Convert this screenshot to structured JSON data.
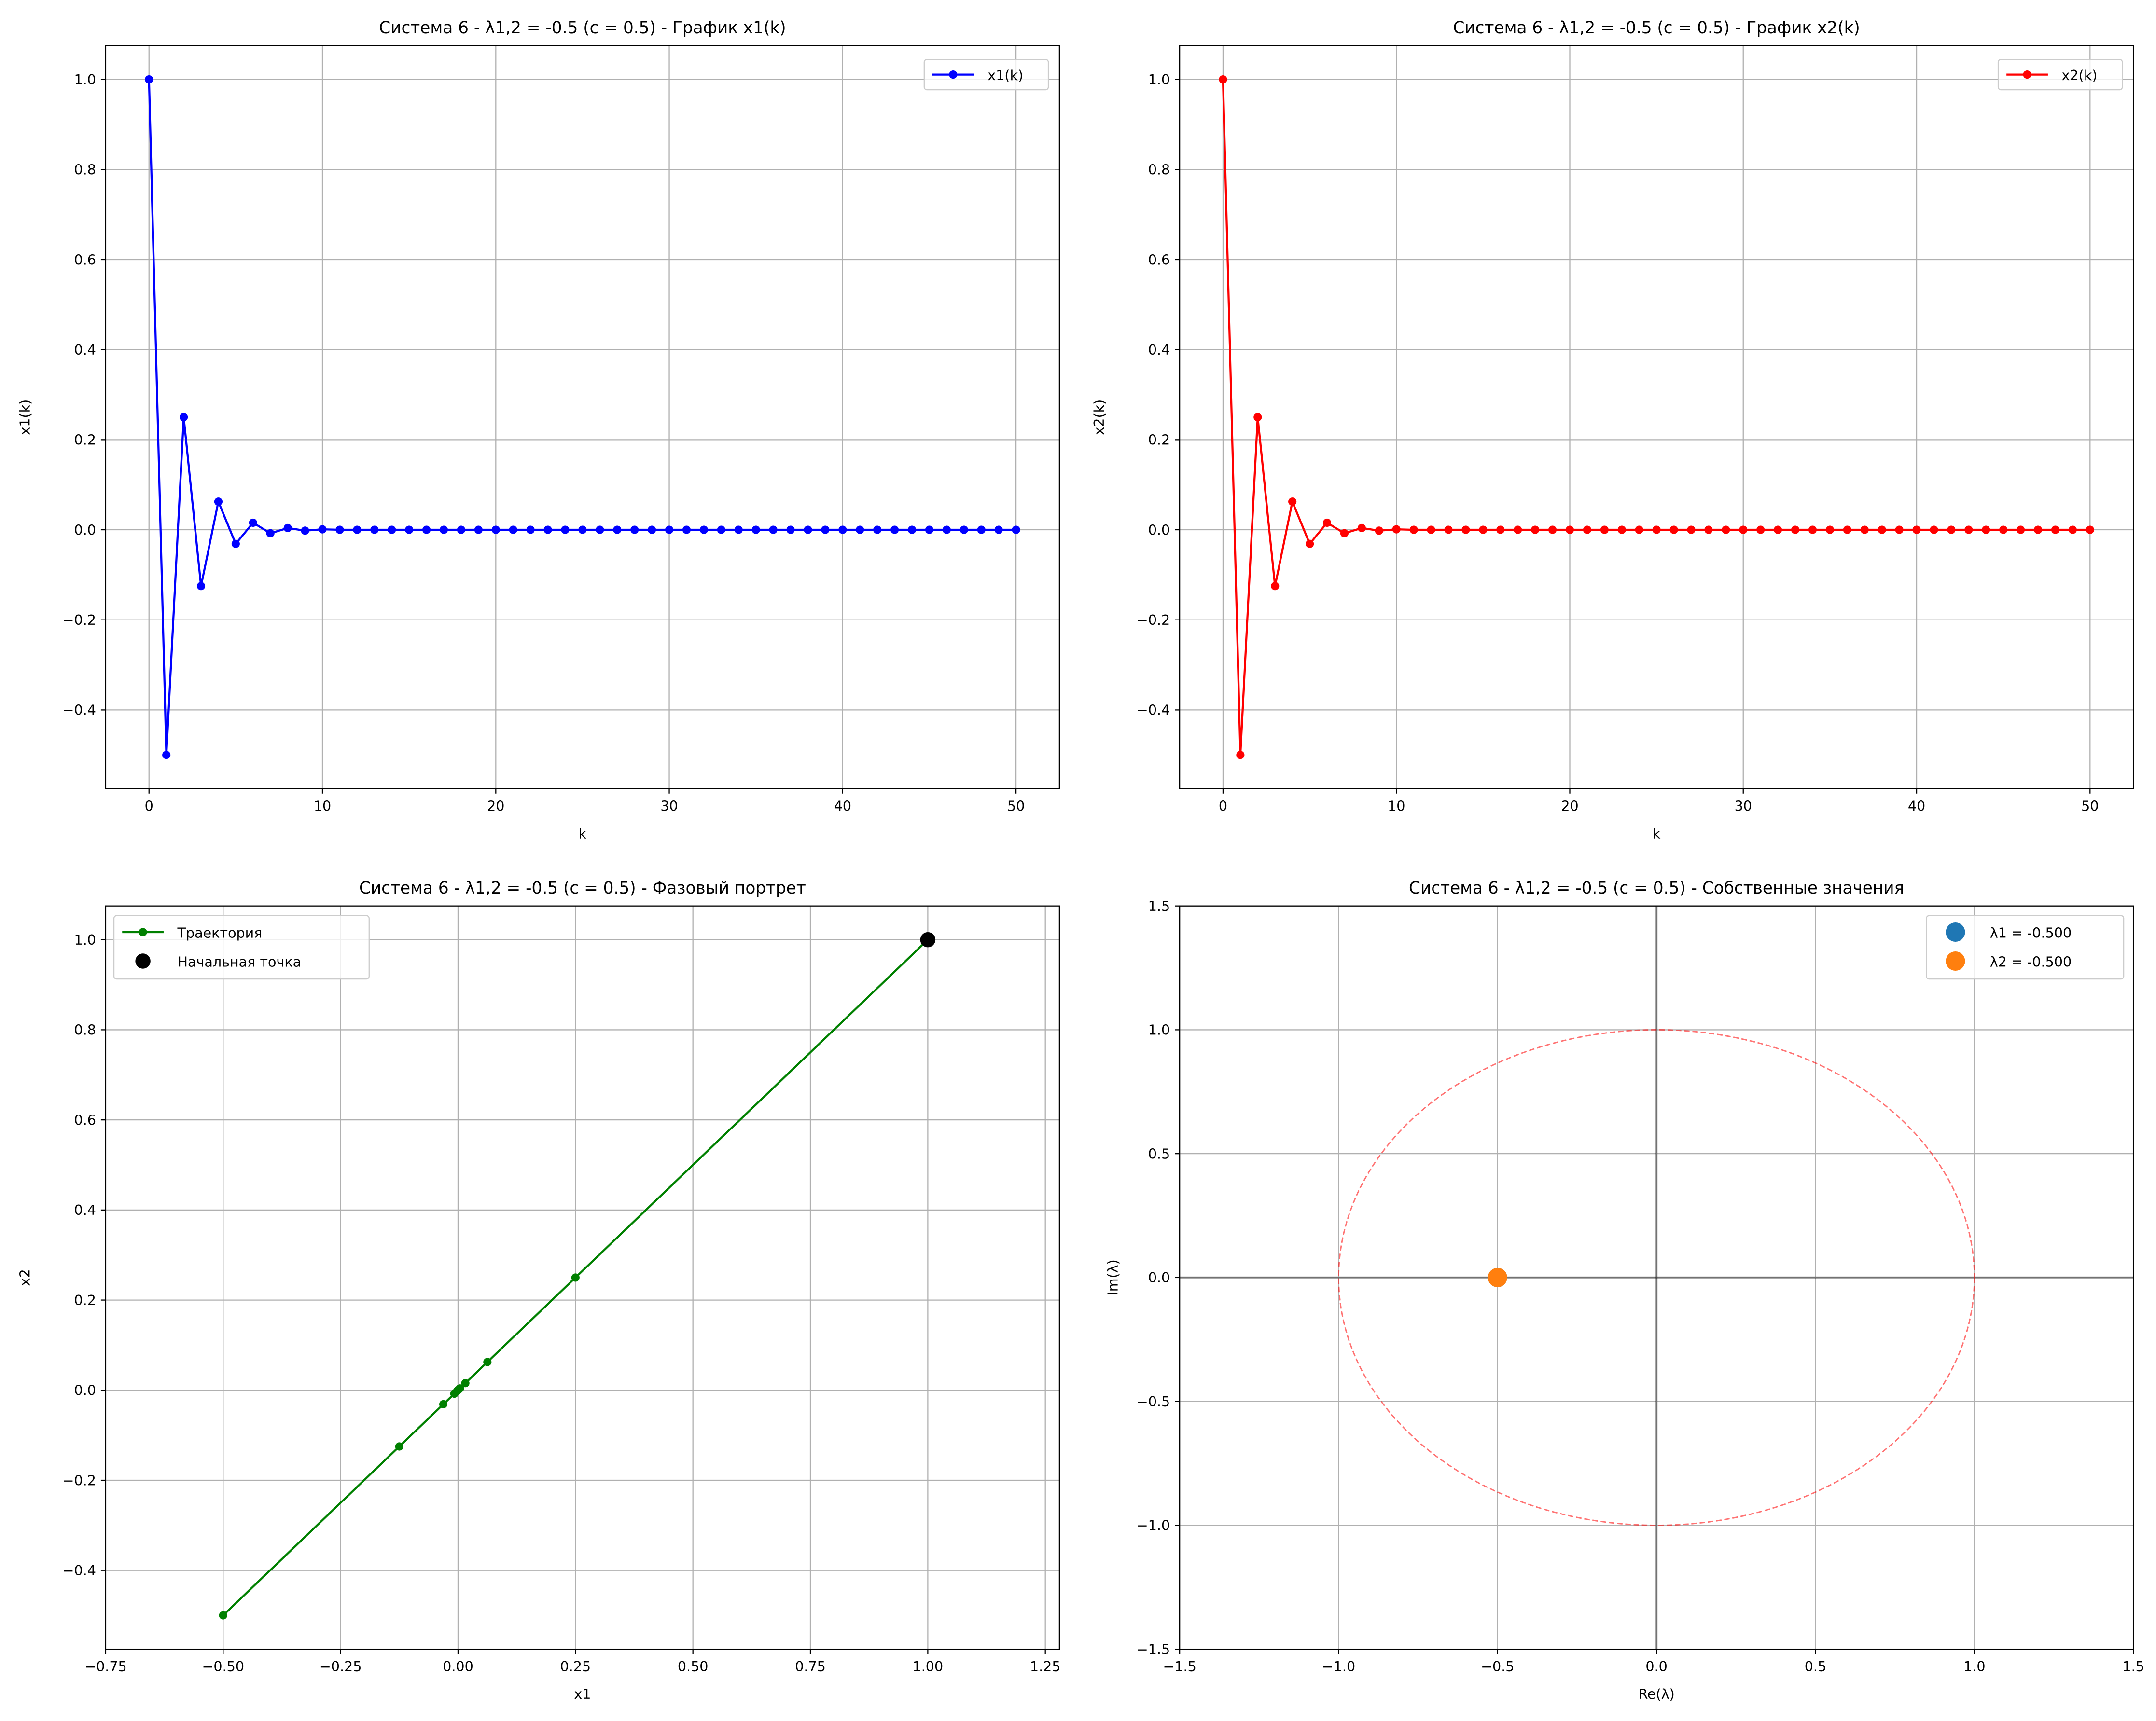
{
  "chart_data": [
    {
      "type": "line",
      "title": "Система 6 - λ1,2 = -0.5 (c = 0.5) - График x1(k)",
      "xlabel": "k",
      "ylabel": "x1(k)",
      "xlim": [
        -2.5,
        52.5
      ],
      "ylim": [
        -0.575,
        1.075
      ],
      "xticks": [
        "0",
        "10",
        "20",
        "30",
        "40",
        "50"
      ],
      "xtick_values": [
        0,
        10,
        20,
        30,
        40,
        50
      ],
      "yticks": [
        "−0.4",
        "−0.2",
        "0.0",
        "0.2",
        "0.4",
        "0.6",
        "0.8",
        "1.0"
      ],
      "ytick_values": [
        -0.4,
        -0.2,
        0,
        0.2,
        0.4,
        0.6,
        0.8,
        1.0
      ],
      "grid": true,
      "legend": "top-right",
      "series": [
        {
          "name": "x1(k)",
          "color": "#0000ff",
          "marker": "circle",
          "x": [
            0,
            1,
            2,
            3,
            4,
            5,
            6,
            7,
            8,
            9,
            10,
            11,
            12,
            13,
            14,
            15,
            16,
            17,
            18,
            19,
            20,
            21,
            22,
            23,
            24,
            25,
            26,
            27,
            28,
            29,
            30,
            31,
            32,
            33,
            34,
            35,
            36,
            37,
            38,
            39,
            40,
            41,
            42,
            43,
            44,
            45,
            46,
            47,
            48,
            49,
            50
          ],
          "y": [
            1,
            -0.5,
            0.25,
            -0.125,
            0.0625,
            -0.03125,
            0.015625,
            -0.0078125,
            0.00390625,
            -0.001953125,
            0.0009765625,
            0,
            0,
            0,
            0,
            0,
            0,
            0,
            0,
            0,
            0,
            0,
            0,
            0,
            0,
            0,
            0,
            0,
            0,
            0,
            0,
            0,
            0,
            0,
            0,
            0,
            0,
            0,
            0,
            0,
            0,
            0,
            0,
            0,
            0,
            0,
            0,
            0,
            0,
            0,
            0
          ]
        }
      ]
    },
    {
      "type": "line",
      "title": "Система 6 - λ1,2 = -0.5 (c = 0.5) - График x2(k)",
      "xlabel": "k",
      "ylabel": "x2(k)",
      "xlim": [
        -2.5,
        52.5
      ],
      "ylim": [
        -0.575,
        1.075
      ],
      "xticks": [
        "0",
        "10",
        "20",
        "30",
        "40",
        "50"
      ],
      "xtick_values": [
        0,
        10,
        20,
        30,
        40,
        50
      ],
      "yticks": [
        "−0.4",
        "−0.2",
        "0.0",
        "0.2",
        "0.4",
        "0.6",
        "0.8",
        "1.0"
      ],
      "ytick_values": [
        -0.4,
        -0.2,
        0,
        0.2,
        0.4,
        0.6,
        0.8,
        1.0
      ],
      "grid": true,
      "legend": "top-right",
      "series": [
        {
          "name": "x2(k)",
          "color": "#ff0000",
          "marker": "circle",
          "x": [
            0,
            1,
            2,
            3,
            4,
            5,
            6,
            7,
            8,
            9,
            10,
            11,
            12,
            13,
            14,
            15,
            16,
            17,
            18,
            19,
            20,
            21,
            22,
            23,
            24,
            25,
            26,
            27,
            28,
            29,
            30,
            31,
            32,
            33,
            34,
            35,
            36,
            37,
            38,
            39,
            40,
            41,
            42,
            43,
            44,
            45,
            46,
            47,
            48,
            49,
            50
          ],
          "y": [
            1,
            -0.5,
            0.25,
            -0.125,
            0.0625,
            -0.03125,
            0.015625,
            -0.0078125,
            0.00390625,
            -0.001953125,
            0.0009765625,
            0,
            0,
            0,
            0,
            0,
            0,
            0,
            0,
            0,
            0,
            0,
            0,
            0,
            0,
            0,
            0,
            0,
            0,
            0,
            0,
            0,
            0,
            0,
            0,
            0,
            0,
            0,
            0,
            0,
            0,
            0,
            0,
            0,
            0,
            0,
            0,
            0,
            0,
            0,
            0
          ]
        }
      ]
    },
    {
      "type": "line",
      "title": "Система 6 - λ1,2 = -0.5 (c = 0.5) - Фазовый портрет",
      "xlabel": "x1",
      "ylabel": "x2",
      "xlim": [
        -0.75,
        1.28
      ],
      "ylim": [
        -0.575,
        1.075
      ],
      "xticks": [
        "−0.75",
        "−0.50",
        "−0.25",
        "0.00",
        "0.25",
        "0.50",
        "0.75",
        "1.00",
        "1.25"
      ],
      "xtick_values": [
        -0.75,
        -0.5,
        -0.25,
        0,
        0.25,
        0.5,
        0.75,
        1.0,
        1.25
      ],
      "yticks": [
        "−0.4",
        "−0.2",
        "0.0",
        "0.2",
        "0.4",
        "0.6",
        "0.8",
        "1.0"
      ],
      "ytick_values": [
        -0.4,
        -0.2,
        0,
        0.2,
        0.4,
        0.6,
        0.8,
        1.0
      ],
      "grid": true,
      "legend": "top-left",
      "series": [
        {
          "name": "Траектория",
          "color": "#008000",
          "marker": "circle",
          "x": [
            1,
            -0.5,
            0.25,
            -0.125,
            0.0625,
            -0.03125,
            0.015625,
            -0.0078125,
            0.00390625,
            -0.001953125,
            0.0009765625,
            0
          ],
          "y": [
            1,
            -0.5,
            0.25,
            -0.125,
            0.0625,
            -0.03125,
            0.015625,
            -0.0078125,
            0.00390625,
            -0.001953125,
            0.0009765625,
            0
          ]
        },
        {
          "name": "Начальная точка",
          "color": "#000000",
          "marker": "large-circle",
          "x": [
            1
          ],
          "y": [
            1
          ]
        }
      ]
    },
    {
      "type": "scatter",
      "title": "Система 6 - λ1,2 = -0.5 (c = 0.5) - Собственные значения",
      "xlabel": "Re(λ)",
      "ylabel": "Im(λ)",
      "xlim": [
        -1.5,
        1.5
      ],
      "ylim": [
        -1.5,
        1.5
      ],
      "xticks": [
        "−1.5",
        "−1.0",
        "−0.5",
        "0.0",
        "0.5",
        "1.0",
        "1.5"
      ],
      "xtick_values": [
        -1.5,
        -1.0,
        -0.5,
        0,
        0.5,
        1.0,
        1.5
      ],
      "yticks": [
        "−1.5",
        "−1.0",
        "−0.5",
        "0.0",
        "0.5",
        "1.0",
        "1.5"
      ],
      "ytick_values": [
        -1.5,
        -1.0,
        -0.5,
        0,
        0.5,
        1.0,
        1.5
      ],
      "grid": true,
      "legend": "top-right",
      "unit_circle": {
        "radius": 1,
        "color": "#ff0000",
        "style": "dashed"
      },
      "series": [
        {
          "name": "λ1 = -0.500",
          "color": "#1f77b4",
          "x": [
            -0.5
          ],
          "y": [
            0
          ]
        },
        {
          "name": "λ2 = -0.500",
          "color": "#ff7f0e",
          "x": [
            -0.5
          ],
          "y": [
            0
          ]
        }
      ]
    }
  ]
}
